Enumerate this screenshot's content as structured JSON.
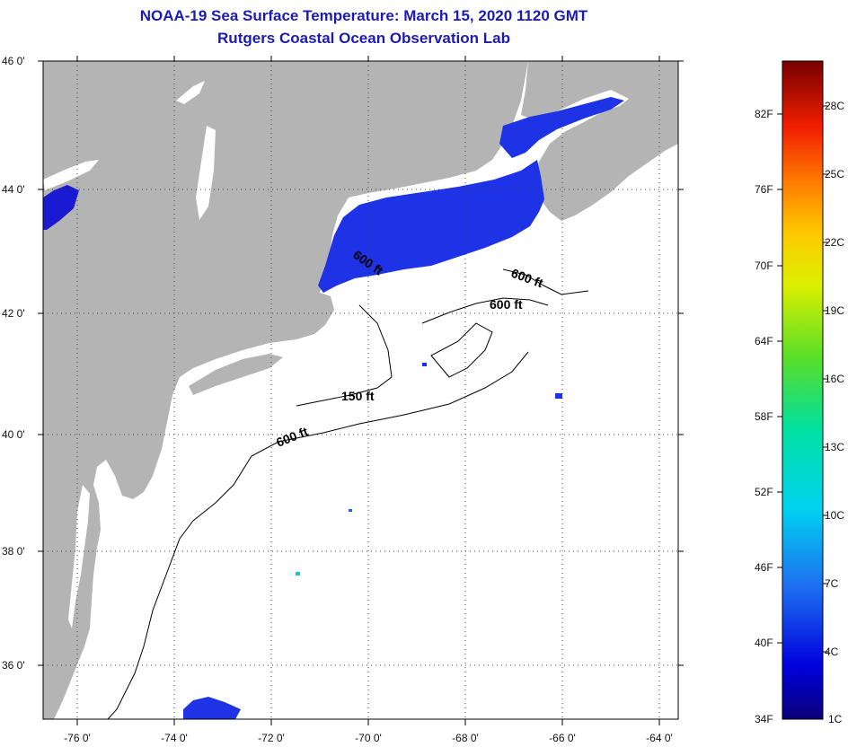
{
  "title": "NOAA-19 Sea Surface Temperature:  March 15, 2020 1120 GMT",
  "subtitle": "Rutgers Coastal Ocean Observation Lab",
  "map": {
    "lat_labels": [
      "46 0'",
      "44 0'",
      "42 0'",
      "40 0'",
      "38 0'",
      "36 0'"
    ],
    "lon_labels": [
      "-76 0'",
      "-74 0'",
      "-72 0'",
      "-70 0'",
      "-68 0'",
      "-66 0'",
      "-64 0'"
    ],
    "contour_labels": [
      "600 ft",
      "600 ft",
      "600 ft",
      "150 ft",
      "600 ft"
    ],
    "colors": {
      "land": "#b4b4b4",
      "ocean": "#ffffff",
      "sst_cold": "#1e32e6",
      "sst_deep": "#1a1ad2"
    }
  },
  "colorbar": {
    "fahrenheit_labels": [
      "82F",
      "76F",
      "70F",
      "64F",
      "58F",
      "52F",
      "46F",
      "40F",
      "34F"
    ],
    "celsius_labels": [
      "28C",
      "25C",
      "22C",
      "19C",
      "16C",
      "13C",
      "10C",
      "7C",
      "4C",
      "1C"
    ]
  }
}
